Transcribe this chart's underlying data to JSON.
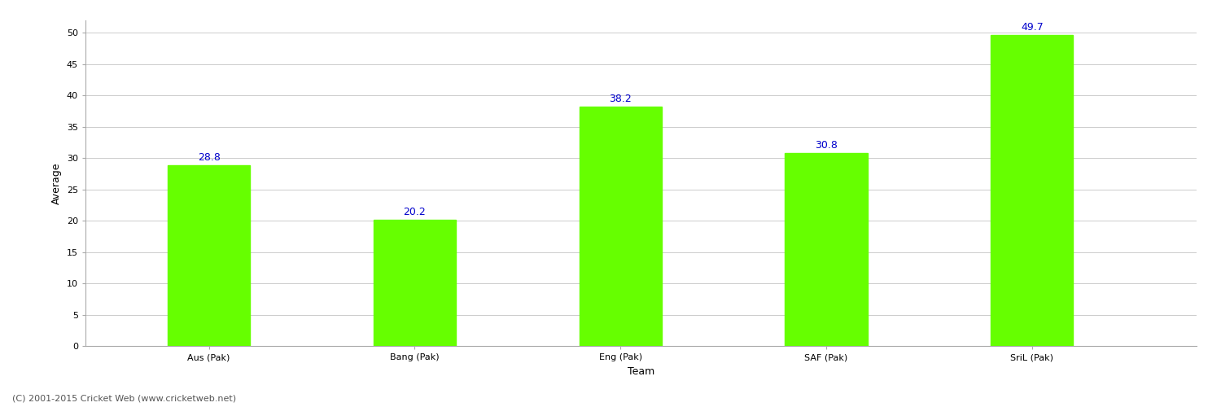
{
  "categories": [
    "Aus (Pak)",
    "Bang (Pak)",
    "Eng (Pak)",
    "SAF (Pak)",
    "SriL (Pak)"
  ],
  "values": [
    28.8,
    20.2,
    38.2,
    30.8,
    49.7
  ],
  "bar_color": "#66ff00",
  "bar_edge_color": "#66ff00",
  "xlabel": "Team",
  "ylabel": "Average",
  "ylim": [
    0,
    52
  ],
  "yticks": [
    0,
    5,
    10,
    15,
    20,
    25,
    30,
    35,
    40,
    45,
    50
  ],
  "label_color": "#0000cc",
  "label_fontsize": 9,
  "axis_label_fontsize": 9,
  "tick_fontsize": 8,
  "grid_color": "#cccccc",
  "background_color": "#ffffff",
  "footer_text": "(C) 2001-2015 Cricket Web (www.cricketweb.net)",
  "footer_fontsize": 8,
  "footer_color": "#555555",
  "bar_width": 0.4
}
